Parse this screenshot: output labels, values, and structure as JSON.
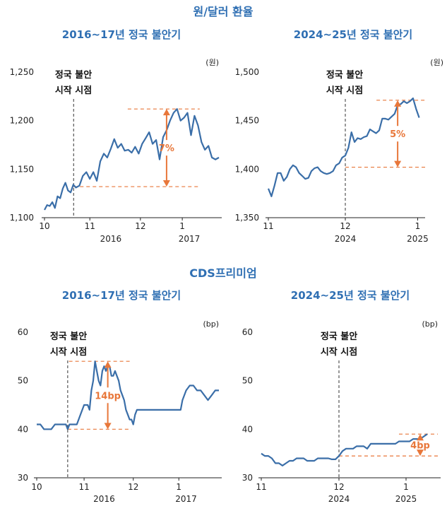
{
  "sections": [
    {
      "title": "원/달러 환율"
    },
    {
      "title": "CDS프리미엄"
    }
  ],
  "colors": {
    "series": "#3a6ea8",
    "accent": "#e8773a",
    "title": "#2f6fb3"
  },
  "chart_data": [
    {
      "type": "line",
      "section": "원/달러 환율",
      "title": "2016~17년 정국 불안기",
      "unit": "(원)",
      "ylim": [
        1100,
        1250
      ],
      "yticks": [
        "1,100",
        "1,150",
        "1,200",
        "1,250"
      ],
      "ytick_values": [
        1100,
        1150,
        1200,
        1250
      ],
      "xlim": [
        0,
        100
      ],
      "xticks": [
        {
          "label": "10",
          "pos": 0
        },
        {
          "label": "11",
          "pos": 26
        },
        {
          "label": "12",
          "pos": 55
        },
        {
          "label": "1",
          "pos": 79
        }
      ],
      "year_labels": [
        {
          "label": "2016",
          "pos": 38
        },
        {
          "label": "2017",
          "pos": 83
        }
      ],
      "start_label": [
        "정국 불안",
        "시작 시점"
      ],
      "start_x": 16.7,
      "band": {
        "low": 1132,
        "high": 1212,
        "label": "7%",
        "x0": 16.7,
        "x1": 89,
        "arrow_x": 70
      },
      "x": [
        0,
        1.5,
        3,
        4.5,
        6,
        7.5,
        9,
        10.5,
        12,
        13.5,
        15,
        16.5,
        18,
        20,
        22,
        24,
        26,
        28,
        30,
        32,
        34,
        36,
        38,
        40,
        42,
        44,
        46,
        48,
        50,
        52,
        54,
        56,
        58,
        60,
        62,
        64,
        66,
        68,
        70,
        72,
        74,
        76,
        78,
        80,
        82,
        84,
        86,
        88,
        90,
        92,
        94,
        96,
        98,
        100
      ],
      "values": [
        1108,
        1113,
        1112,
        1116,
        1110,
        1122,
        1120,
        1130,
        1136,
        1128,
        1126,
        1134,
        1131,
        1133,
        1143,
        1147,
        1140,
        1147,
        1138,
        1158,
        1166,
        1162,
        1171,
        1181,
        1172,
        1176,
        1169,
        1170,
        1167,
        1173,
        1166,
        1176,
        1182,
        1188,
        1176,
        1180,
        1160,
        1183,
        1190,
        1200,
        1208,
        1212,
        1200,
        1203,
        1208,
        1185,
        1205,
        1195,
        1178,
        1170,
        1174,
        1162,
        1160,
        1162
      ]
    },
    {
      "type": "line",
      "section": "원/달러 환율",
      "title": "2024~25년 정국 불안기",
      "unit": "(원)",
      "ylim": [
        1350,
        1500
      ],
      "yticks": [
        "1,350",
        "1,400",
        "1,450",
        "1,500"
      ],
      "ytick_values": [
        1350,
        1400,
        1450,
        1500
      ],
      "xlim": [
        0,
        100
      ],
      "xticks": [
        {
          "label": "11",
          "pos": 0
        },
        {
          "label": "12",
          "pos": 50
        },
        {
          "label": "1",
          "pos": 97
        }
      ],
      "year_labels": [
        {
          "label": "2024",
          "pos": 50
        },
        {
          "label": "2025",
          "pos": 97
        }
      ],
      "start_label": [
        "정국 불안",
        "시작 시점"
      ],
      "start_x": 50,
      "band": {
        "low": 1402,
        "high": 1471,
        "label": "5%",
        "x0": 50,
        "x1": 103,
        "arrow_x": 84
      },
      "x": [
        0,
        2,
        4,
        6,
        8,
        10,
        12,
        14,
        16,
        18,
        20,
        22,
        24,
        26,
        28,
        30,
        32,
        34,
        36,
        38,
        40,
        42,
        44,
        46,
        48,
        50,
        52,
        54,
        56,
        58,
        60,
        62,
        64,
        66,
        68,
        70,
        72,
        74,
        76,
        78,
        80,
        82,
        84,
        86,
        88,
        90,
        92,
        94,
        96,
        98
      ],
      "values": [
        1380,
        1372,
        1383,
        1396,
        1396,
        1388,
        1392,
        1400,
        1404,
        1402,
        1396,
        1393,
        1390,
        1391,
        1398,
        1401,
        1402,
        1398,
        1396,
        1395,
        1396,
        1398,
        1404,
        1406,
        1412,
        1414,
        1422,
        1438,
        1428,
        1432,
        1431,
        1433,
        1434,
        1441,
        1439,
        1437,
        1440,
        1452,
        1452,
        1451,
        1454,
        1457,
        1466,
        1467,
        1470,
        1468,
        1470,
        1473,
        1462,
        1453
      ]
    },
    {
      "type": "line",
      "section": "CDS프리미엄",
      "title": "2016~17년 정국 불안기",
      "unit": "(bp)",
      "ylim": [
        30,
        60
      ],
      "yticks": [
        "30",
        "40",
        "50",
        "60"
      ],
      "ytick_values": [
        30,
        40,
        50,
        60
      ],
      "xlim": [
        0,
        100
      ],
      "xticks": [
        {
          "label": "10",
          "pos": 0
        },
        {
          "label": "11",
          "pos": 26
        },
        {
          "label": "12",
          "pos": 53
        },
        {
          "label": "1",
          "pos": 78
        }
      ],
      "year_labels": [
        {
          "label": "2016",
          "pos": 37
        },
        {
          "label": "2017",
          "pos": 82
        }
      ],
      "start_label": [
        "정국 불안",
        "시작 시점"
      ],
      "start_x": 17,
      "band": {
        "low": 40,
        "high": 54,
        "label": "14bp",
        "x0": 17,
        "x1": 52,
        "arrow_x": 39
      },
      "x": [
        0,
        2,
        4,
        6,
        8,
        10,
        12,
        14,
        16,
        17,
        18,
        20,
        22,
        24,
        26,
        28,
        29,
        30,
        31,
        32,
        33,
        34,
        35,
        36,
        37,
        38,
        39,
        40,
        41,
        42,
        43,
        44,
        45,
        46,
        47,
        48,
        49,
        50,
        51,
        52,
        53,
        54,
        55,
        57,
        59,
        61,
        63,
        65,
        67,
        69,
        71,
        73,
        75,
        77,
        79,
        80,
        82,
        84,
        86,
        88,
        90,
        92,
        94,
        96,
        98,
        100
      ],
      "values": [
        41,
        41,
        40,
        40,
        40,
        41,
        41,
        41,
        41,
        40,
        41,
        41,
        41,
        43,
        45,
        45,
        44,
        48,
        50,
        54,
        52,
        50,
        49,
        52,
        53,
        52,
        53,
        53,
        51,
        51,
        52,
        51,
        50,
        48,
        47,
        46,
        44,
        43,
        42,
        42,
        41,
        43,
        44,
        44,
        44,
        44,
        44,
        44,
        44,
        44,
        44,
        44,
        44,
        44,
        44,
        46,
        48,
        49,
        49,
        48,
        48,
        47,
        46,
        47,
        48,
        48
      ]
    },
    {
      "type": "line",
      "section": "CDS프리미엄",
      "title": "2024~25년 정국 불안기",
      "unit": "(bp)",
      "ylim": [
        30,
        60
      ],
      "yticks": [
        "30",
        "40",
        "50",
        "60"
      ],
      "ytick_values": [
        30,
        40,
        50,
        60
      ],
      "xlim": [
        0,
        100
      ],
      "xticks": [
        {
          "label": "11",
          "pos": 0
        },
        {
          "label": "12",
          "pos": 44
        },
        {
          "label": "1",
          "pos": 82
        }
      ],
      "year_labels": [
        {
          "label": "2024",
          "pos": 44
        },
        {
          "label": "2025",
          "pos": 82
        }
      ],
      "start_label": [
        "정국 불안",
        "시작 시점"
      ],
      "start_x": 44,
      "band": {
        "low": 34.5,
        "high": 39,
        "label": "4bp",
        "x0": 44,
        "x1": 100,
        "arrow_x": 90
      },
      "x": [
        0,
        2,
        4,
        6,
        8,
        10,
        12,
        14,
        16,
        18,
        20,
        22,
        24,
        26,
        28,
        30,
        32,
        34,
        36,
        38,
        40,
        42,
        44,
        46,
        48,
        50,
        52,
        54,
        56,
        58,
        60,
        62,
        64,
        66,
        68,
        70,
        72,
        74,
        76,
        78,
        80,
        82,
        84,
        86,
        88,
        90,
        92,
        94
      ],
      "values": [
        35,
        34.5,
        34.5,
        34,
        33,
        33,
        32.5,
        33,
        33.5,
        33.5,
        34,
        34,
        34,
        33.5,
        33.5,
        33.5,
        34,
        34,
        34,
        34,
        33.8,
        33.8,
        34.5,
        35.5,
        36,
        36,
        36,
        36.5,
        36.5,
        36.5,
        36,
        37,
        37,
        37,
        37,
        37,
        37,
        37,
        37,
        37.5,
        37.5,
        37.5,
        37.5,
        38,
        38,
        38,
        38.5,
        39
      ]
    }
  ]
}
